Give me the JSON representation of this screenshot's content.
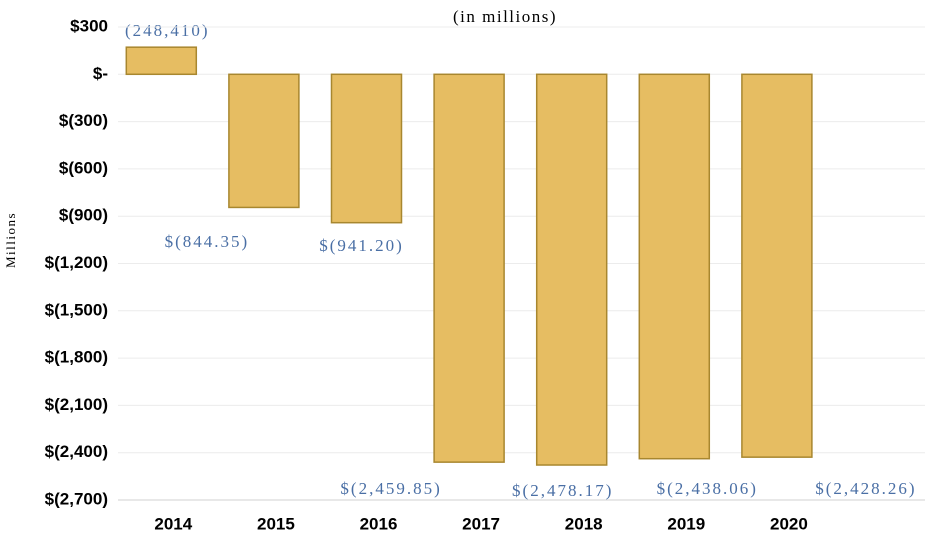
{
  "chart_data": {
    "type": "bar",
    "subtitle": "(in millions)",
    "y_label": "Millions",
    "annotation": "(248,410)",
    "categories": [
      "2014",
      "2015",
      "2016",
      "2017",
      "2018",
      "2019",
      "2020"
    ],
    "values": [
      172,
      -844.35,
      -941.2,
      -2459.85,
      -2478.17,
      -2438.06,
      -2428.26
    ],
    "value_labels": [
      null,
      "$(844.35)",
      "$(941.20)",
      "$(2,459.85)",
      "$(2,478.17)",
      "$(2,438.06)",
      "$(2,428.26)"
    ],
    "color": "#e6bd62",
    "ylim": [
      -2700,
      300
    ],
    "yticks": [
      {
        "value": 300,
        "label": "$300"
      },
      {
        "value": 0,
        "label": "$-"
      },
      {
        "value": -300,
        "label": "$(300)"
      },
      {
        "value": -600,
        "label": "$(600)"
      },
      {
        "value": -900,
        "label": "$(900)"
      },
      {
        "value": -1200,
        "label": "$(1,200)"
      },
      {
        "value": -1500,
        "label": "$(1,500)"
      },
      {
        "value": -1800,
        "label": "$(1,800)"
      },
      {
        "value": -2100,
        "label": "$(2,100)"
      },
      {
        "value": -2400,
        "label": "$(2,400)"
      },
      {
        "value": -2700,
        "label": "$(2,700)"
      }
    ],
    "grid": true
  }
}
